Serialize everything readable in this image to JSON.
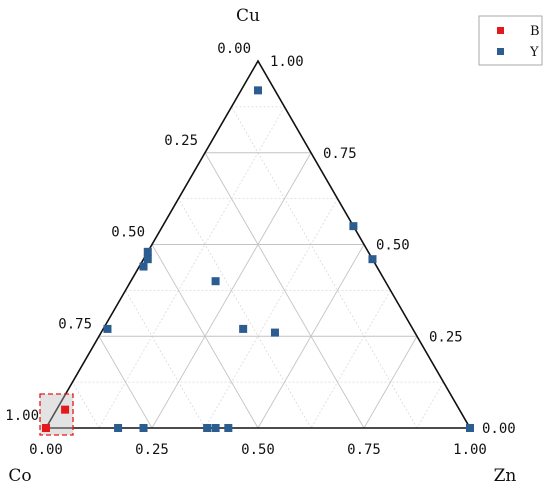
{
  "chart_data": {
    "type": "ternary-scatter",
    "title": "",
    "vertices": {
      "top": "Cu",
      "left": "Co",
      "right": "Zn"
    },
    "tick_values": [
      0,
      0.25,
      0.5,
      0.75,
      1.0
    ],
    "tick_labels": [
      "0.00",
      "0.25",
      "0.50",
      "0.75",
      "1.00"
    ],
    "grid": true,
    "minor_grid": true,
    "legend": {
      "position": "top-right"
    },
    "series": [
      {
        "name": "B",
        "color": "#e31a1c",
        "points": [
          {
            "cu": 0.05,
            "co": 0.93,
            "zn": 0.02
          },
          {
            "cu": 0.0,
            "co": 1.0,
            "zn": 0.0
          }
        ]
      },
      {
        "name": "Y",
        "color": "#2b5d91",
        "points": [
          {
            "cu": 0.92,
            "co": 0.04,
            "zn": 0.04
          },
          {
            "cu": 0.55,
            "co": 0.0,
            "zn": 0.45
          },
          {
            "cu": 0.46,
            "co": 0.0,
            "zn": 0.54
          },
          {
            "cu": 0.48,
            "co": 0.52,
            "zn": 0.0
          },
          {
            "cu": 0.46,
            "co": 0.53,
            "zn": 0.01
          },
          {
            "cu": 0.44,
            "co": 0.55,
            "zn": 0.01
          },
          {
            "cu": 0.4,
            "co": 0.4,
            "zn": 0.2
          },
          {
            "cu": 0.27,
            "co": 0.4,
            "zn": 0.33
          },
          {
            "cu": 0.26,
            "co": 0.33,
            "zn": 0.41
          },
          {
            "cu": 0.27,
            "co": 0.72,
            "zn": 0.01
          },
          {
            "cu": 0.0,
            "co": 0.83,
            "zn": 0.17
          },
          {
            "cu": 0.0,
            "co": 0.77,
            "zn": 0.23
          },
          {
            "cu": 0.0,
            "co": 0.62,
            "zn": 0.38
          },
          {
            "cu": 0.0,
            "co": 0.6,
            "zn": 0.4
          },
          {
            "cu": 0.0,
            "co": 0.57,
            "zn": 0.43
          },
          {
            "cu": 0.0,
            "co": 0.0,
            "zn": 1.0
          }
        ]
      }
    ],
    "highlight_region": {
      "label": "",
      "cu_max": 0.07,
      "co_min": 0.9
    }
  }
}
